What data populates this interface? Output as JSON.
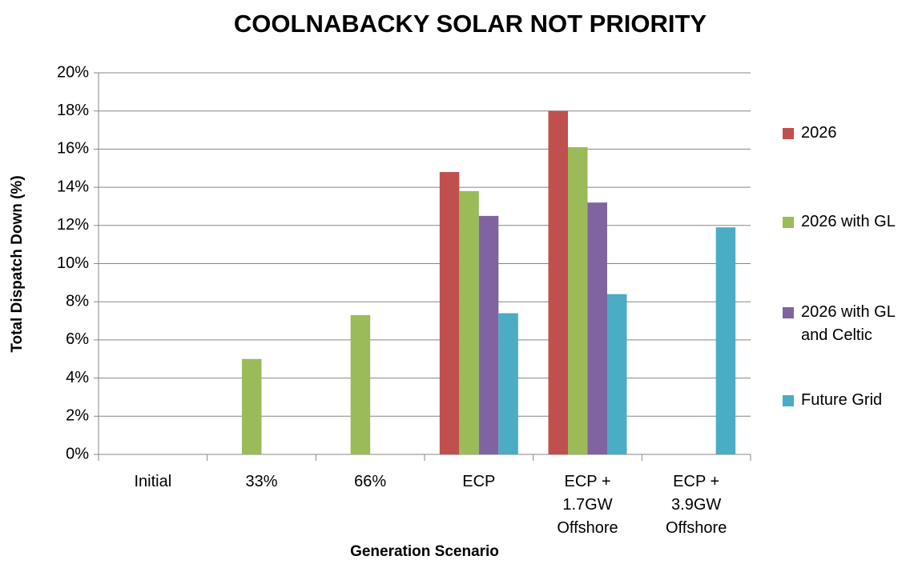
{
  "chart_data": {
    "type": "bar",
    "title": "COOLNABACKY SOLAR NOT PRIORITY",
    "xlabel": "Generation Scenario",
    "ylabel": "Total Dispatch Down (%)",
    "categories": [
      "Initial",
      "33%",
      "66%",
      "ECP",
      "ECP + 1.7GW Offshore",
      "ECP + 3.9GW Offshore"
    ],
    "series": [
      {
        "name": "2026",
        "color": "#c0504d",
        "values": [
          null,
          null,
          null,
          14.8,
          18.0,
          null
        ]
      },
      {
        "name": "2026 with GL",
        "color": "#9bbb59",
        "values": [
          null,
          5.0,
          7.3,
          13.8,
          16.1,
          null
        ]
      },
      {
        "name": "2026 with GL and Celtic",
        "color": "#8064a2",
        "values": [
          null,
          null,
          null,
          12.5,
          13.2,
          null
        ]
      },
      {
        "name": "Future Grid",
        "color": "#4bacc6",
        "values": [
          null,
          null,
          null,
          7.4,
          8.4,
          11.9
        ]
      }
    ],
    "ylim": [
      0,
      20
    ],
    "yticks": [
      {
        "value": 0,
        "label": "0%"
      },
      {
        "value": 2,
        "label": "2%"
      },
      {
        "value": 4,
        "label": "4%"
      },
      {
        "value": 6,
        "label": "6%"
      },
      {
        "value": 8,
        "label": "8%"
      },
      {
        "value": 10,
        "label": "10%"
      },
      {
        "value": 12,
        "label": "12%"
      },
      {
        "value": 14,
        "label": "14%"
      },
      {
        "value": 16,
        "label": "16%"
      },
      {
        "value": 18,
        "label": "18%"
      },
      {
        "value": 20,
        "label": "20%"
      }
    ],
    "grid": true,
    "legend": "right"
  }
}
